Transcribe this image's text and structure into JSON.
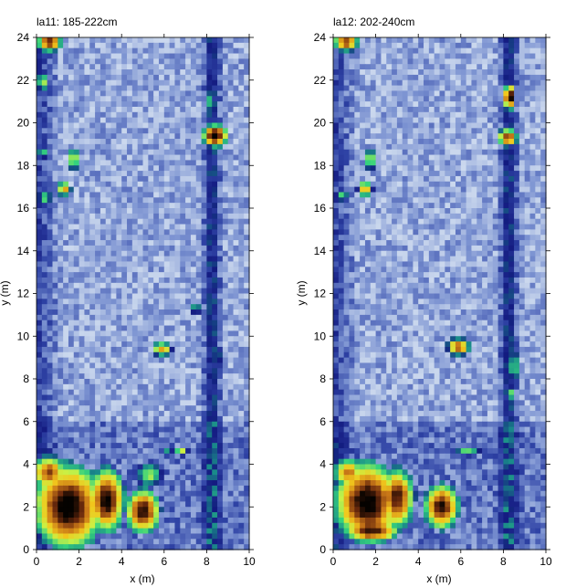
{
  "figure": {
    "panels": [
      {
        "title": "la11: 185-222cm"
      },
      {
        "title": "la12: 202-240cm"
      }
    ]
  },
  "chart_data": [
    {
      "type": "heatmap",
      "title": "la11: 185-222cm",
      "xlabel": "x (m)",
      "ylabel": "y (m)",
      "xlim": [
        0,
        10
      ],
      "ylim": [
        0,
        24
      ],
      "xticks": [
        0,
        2,
        4,
        6,
        8,
        10
      ],
      "yticks": [
        0,
        2,
        4,
        6,
        8,
        10,
        12,
        14,
        16,
        18,
        20,
        22,
        24
      ],
      "grid": false,
      "colormap": [
        "#f4f8fc",
        "#c6d4ec",
        "#7b92d1",
        "#2f43a5",
        "#131a80",
        "#1a8a8a",
        "#36d37d",
        "#c8f246",
        "#f2c71c",
        "#c97818",
        "#6b2a0d",
        "#050200"
      ],
      "anomalies": [
        {
          "x": 0.6,
          "y": 23.8,
          "w": 1.0,
          "h": 0.8,
          "level": 0.92
        },
        {
          "x": 0.3,
          "y": 21.9,
          "w": 0.5,
          "h": 0.8,
          "level": 0.62
        },
        {
          "x": 8.4,
          "y": 19.4,
          "w": 1.0,
          "h": 0.9,
          "level": 1.0
        },
        {
          "x": 8.2,
          "y": 21.0,
          "w": 0.3,
          "h": 0.9,
          "level": 0.6
        },
        {
          "x": 1.75,
          "y": 18.3,
          "w": 0.4,
          "h": 1.0,
          "level": 0.7
        },
        {
          "x": 1.3,
          "y": 16.9,
          "w": 0.6,
          "h": 0.6,
          "level": 0.75
        },
        {
          "x": 0.4,
          "y": 16.5,
          "w": 0.6,
          "h": 0.5,
          "level": 0.6
        },
        {
          "x": 0.3,
          "y": 18.6,
          "w": 0.5,
          "h": 0.5,
          "level": 0.55
        },
        {
          "x": 5.9,
          "y": 9.4,
          "w": 0.8,
          "h": 0.6,
          "level": 0.75
        },
        {
          "x": 7.5,
          "y": 11.3,
          "w": 0.4,
          "h": 0.5,
          "level": 0.55
        },
        {
          "x": 8.5,
          "y": 9.0,
          "w": 0.3,
          "h": 0.9,
          "level": 0.55
        },
        {
          "x": 1.5,
          "y": 2.0,
          "w": 2.8,
          "h": 3.4,
          "level": 1.0
        },
        {
          "x": 3.3,
          "y": 2.3,
          "w": 1.4,
          "h": 2.6,
          "level": 0.98
        },
        {
          "x": 0.6,
          "y": 3.6,
          "w": 1.4,
          "h": 1.4,
          "level": 0.85
        },
        {
          "x": 5.0,
          "y": 1.8,
          "w": 1.4,
          "h": 1.8,
          "level": 0.95
        },
        {
          "x": 5.3,
          "y": 3.5,
          "w": 1.1,
          "h": 1.0,
          "level": 0.6
        },
        {
          "x": 6.8,
          "y": 4.6,
          "w": 0.6,
          "h": 0.4,
          "level": 0.62
        },
        {
          "x": 6.2,
          "y": 4.6,
          "w": 0.4,
          "h": 0.4,
          "level": 0.5
        }
      ]
    },
    {
      "type": "heatmap",
      "title": "la12: 202-240cm",
      "xlabel": "x (m)",
      "ylabel": "y (m)",
      "xlim": [
        0,
        10
      ],
      "ylim": [
        0,
        24
      ],
      "xticks": [
        0,
        2,
        4,
        6,
        8,
        10
      ],
      "yticks": [
        0,
        2,
        4,
        6,
        8,
        10,
        12,
        14,
        16,
        18,
        20,
        22,
        24
      ],
      "grid": false,
      "colormap": [
        "#f4f8fc",
        "#c6d4ec",
        "#7b92d1",
        "#2f43a5",
        "#131a80",
        "#1a8a8a",
        "#36d37d",
        "#c8f246",
        "#f2c71c",
        "#c97818",
        "#6b2a0d",
        "#050200"
      ],
      "anomalies": [
        {
          "x": 0.6,
          "y": 23.8,
          "w": 1.0,
          "h": 0.8,
          "level": 0.88
        },
        {
          "x": 8.3,
          "y": 21.2,
          "w": 0.5,
          "h": 1.0,
          "level": 1.0
        },
        {
          "x": 8.2,
          "y": 19.3,
          "w": 0.8,
          "h": 0.7,
          "level": 0.9
        },
        {
          "x": 1.75,
          "y": 18.3,
          "w": 0.4,
          "h": 0.9,
          "level": 0.7
        },
        {
          "x": 1.5,
          "y": 16.9,
          "w": 0.6,
          "h": 0.7,
          "level": 0.75
        },
        {
          "x": 0.4,
          "y": 16.6,
          "w": 0.6,
          "h": 0.5,
          "level": 0.55
        },
        {
          "x": 5.9,
          "y": 9.5,
          "w": 0.9,
          "h": 0.7,
          "level": 0.85
        },
        {
          "x": 8.5,
          "y": 8.6,
          "w": 0.4,
          "h": 1.4,
          "level": 0.6
        },
        {
          "x": 8.4,
          "y": 7.3,
          "w": 0.3,
          "h": 0.6,
          "level": 0.55
        },
        {
          "x": 1.6,
          "y": 2.2,
          "w": 2.6,
          "h": 3.2,
          "level": 1.0
        },
        {
          "x": 3.0,
          "y": 2.4,
          "w": 1.4,
          "h": 2.4,
          "level": 0.93
        },
        {
          "x": 0.7,
          "y": 3.6,
          "w": 1.2,
          "h": 1.2,
          "level": 0.8
        },
        {
          "x": 5.1,
          "y": 2.0,
          "w": 1.4,
          "h": 1.8,
          "level": 0.95
        },
        {
          "x": 6.3,
          "y": 4.6,
          "w": 1.2,
          "h": 0.4,
          "level": 0.55
        },
        {
          "x": 1.8,
          "y": 0.9,
          "w": 2.2,
          "h": 1.0,
          "level": 0.95
        }
      ]
    }
  ]
}
